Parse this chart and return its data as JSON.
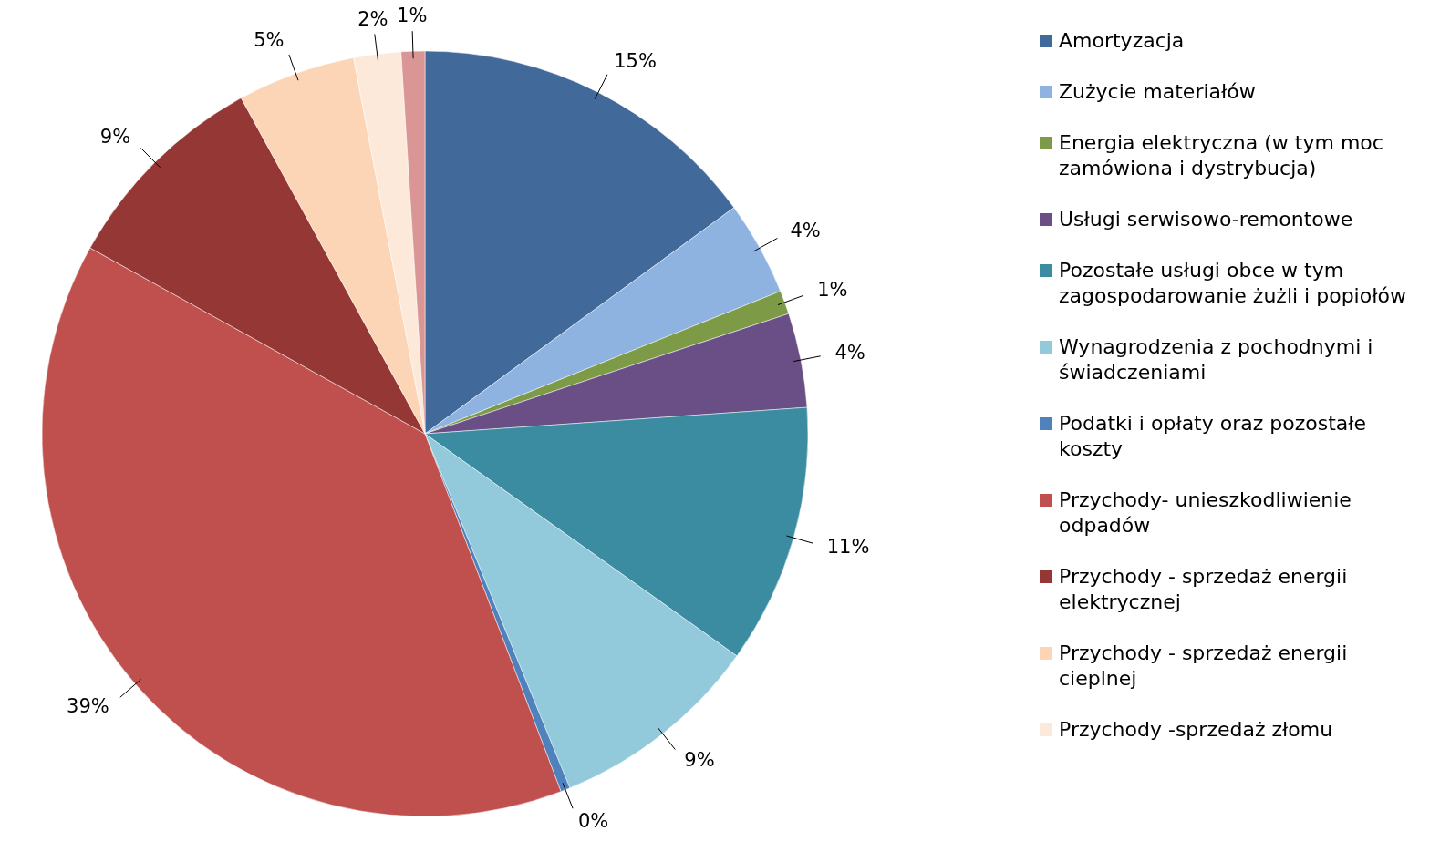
{
  "chart_data": {
    "type": "pie",
    "categories": [
      "Amortyzacja",
      "Zużycie materiałów",
      "Energia elektryczna (w tym moc zamówiona i dystrybucja)",
      "Usługi serwisowo-remontowe",
      "Pozostałe usługi obce w tym zagospodarowanie żużli i popiołów",
      "Wynagrodzenia z pochodnymi i świadczeniami",
      "Podatki i opłaty oraz pozostałe koszty",
      "Przychody- unieszkodliwienie odpadów",
      "Przychody - sprzedaż energii elektrycznej",
      "Przychody - sprzedaż energii cieplnej",
      "Przychody -sprzedaż złomu",
      null
    ],
    "values": [
      15,
      4,
      1,
      4,
      11,
      9,
      0.4,
      39,
      9,
      5,
      2,
      1
    ],
    "value_labels": [
      "15%",
      "4%",
      "1%",
      "4%",
      "11%",
      "9%",
      "0%",
      "39%",
      "9%",
      "5%",
      "2%",
      "1%"
    ],
    "colors": [
      "#416a9b",
      "#8fb3e0",
      "#7d9a47",
      "#6a4f86",
      "#3b8ba1",
      "#93cadb",
      "#4f81bd",
      "#c0504d",
      "#953735",
      "#fbd5b5",
      "#fde9d9",
      "#d99694"
    ],
    "legend": "right"
  }
}
